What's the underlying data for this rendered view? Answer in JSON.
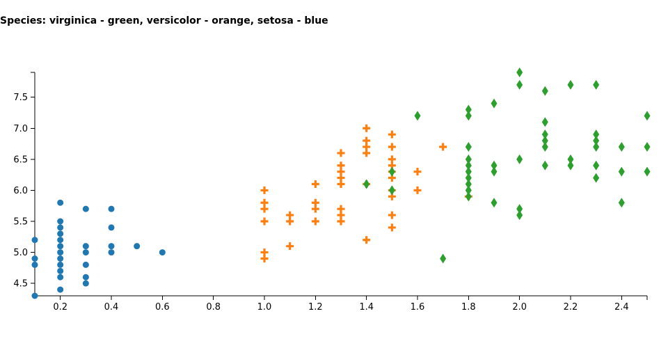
{
  "chart_data": {
    "type": "scatter",
    "title": "Species: virginica - green, versicolor - orange, setosa - blue",
    "xlabel": "",
    "ylabel": "",
    "xlim": [
      0.1,
      2.5
    ],
    "ylim": [
      4.3,
      7.9
    ],
    "x_ticks": [
      0.2,
      0.4,
      0.6,
      0.8,
      1.0,
      1.2,
      1.4,
      1.6,
      1.8,
      2.0,
      2.2,
      2.4
    ],
    "x_tick_labels": [
      "0.2",
      "0.4",
      "0.6",
      "0.8",
      "1.0",
      "1.2",
      "1.4",
      "1.6",
      "1.8",
      "2.0",
      "2.2",
      "2.4"
    ],
    "y_ticks": [
      4.5,
      5.0,
      5.5,
      6.0,
      6.5,
      7.0,
      7.5
    ],
    "y_tick_labels": [
      "4.5",
      "5.0",
      "5.5",
      "6.0",
      "6.5",
      "7.0",
      "7.5"
    ],
    "grid": false,
    "legend": "none",
    "series": [
      {
        "species": "setosa",
        "color": "#1f77b4",
        "marker": "circle",
        "points": [
          [
            0.1,
            4.3
          ],
          [
            0.1,
            4.8
          ],
          [
            0.1,
            4.9
          ],
          [
            0.1,
            5.2
          ],
          [
            0.2,
            4.4
          ],
          [
            0.2,
            4.6
          ],
          [
            0.2,
            4.7
          ],
          [
            0.2,
            4.8
          ],
          [
            0.2,
            4.9
          ],
          [
            0.2,
            5.0
          ],
          [
            0.2,
            5.1
          ],
          [
            0.2,
            5.2
          ],
          [
            0.2,
            5.3
          ],
          [
            0.2,
            5.4
          ],
          [
            0.2,
            5.5
          ],
          [
            0.2,
            5.8
          ],
          [
            0.3,
            4.5
          ],
          [
            0.3,
            4.6
          ],
          [
            0.3,
            4.8
          ],
          [
            0.3,
            5.0
          ],
          [
            0.3,
            5.1
          ],
          [
            0.3,
            5.7
          ],
          [
            0.4,
            5.0
          ],
          [
            0.4,
            5.1
          ],
          [
            0.4,
            5.4
          ],
          [
            0.4,
            5.7
          ],
          [
            0.5,
            5.1
          ],
          [
            0.6,
            5.0
          ]
        ]
      },
      {
        "species": "versicolor",
        "color": "#ff7f0e",
        "marker": "cross",
        "points": [
          [
            1.0,
            4.9
          ],
          [
            1.0,
            5.0
          ],
          [
            1.0,
            5.5
          ],
          [
            1.0,
            5.7
          ],
          [
            1.0,
            5.8
          ],
          [
            1.0,
            6.0
          ],
          [
            1.1,
            5.1
          ],
          [
            1.1,
            5.5
          ],
          [
            1.1,
            5.6
          ],
          [
            1.2,
            5.5
          ],
          [
            1.2,
            5.7
          ],
          [
            1.2,
            5.8
          ],
          [
            1.2,
            6.1
          ],
          [
            1.3,
            5.5
          ],
          [
            1.3,
            5.6
          ],
          [
            1.3,
            5.7
          ],
          [
            1.3,
            6.1
          ],
          [
            1.3,
            6.2
          ],
          [
            1.3,
            6.3
          ],
          [
            1.3,
            6.4
          ],
          [
            1.3,
            6.6
          ],
          [
            1.4,
            5.2
          ],
          [
            1.4,
            6.1
          ],
          [
            1.4,
            6.6
          ],
          [
            1.4,
            6.7
          ],
          [
            1.4,
            6.8
          ],
          [
            1.4,
            7.0
          ],
          [
            1.5,
            5.4
          ],
          [
            1.5,
            5.6
          ],
          [
            1.5,
            5.9
          ],
          [
            1.5,
            6.0
          ],
          [
            1.5,
            6.2
          ],
          [
            1.5,
            6.3
          ],
          [
            1.5,
            6.4
          ],
          [
            1.5,
            6.5
          ],
          [
            1.5,
            6.7
          ],
          [
            1.5,
            6.9
          ],
          [
            1.6,
            6.0
          ],
          [
            1.6,
            6.3
          ],
          [
            1.7,
            6.7
          ],
          [
            1.8,
            5.9
          ]
        ]
      },
      {
        "species": "virginica",
        "color": "#2ca02c",
        "marker": "diamond",
        "points": [
          [
            1.4,
            6.1
          ],
          [
            1.5,
            6.0
          ],
          [
            1.5,
            6.3
          ],
          [
            1.6,
            7.2
          ],
          [
            1.7,
            4.9
          ],
          [
            1.8,
            5.9
          ],
          [
            1.8,
            6.0
          ],
          [
            1.8,
            6.1
          ],
          [
            1.8,
            6.2
          ],
          [
            1.8,
            6.3
          ],
          [
            1.8,
            6.4
          ],
          [
            1.8,
            6.5
          ],
          [
            1.8,
            6.7
          ],
          [
            1.8,
            7.2
          ],
          [
            1.8,
            7.3
          ],
          [
            1.9,
            5.8
          ],
          [
            1.9,
            6.3
          ],
          [
            1.9,
            6.4
          ],
          [
            1.9,
            7.4
          ],
          [
            2.0,
            5.6
          ],
          [
            2.0,
            5.7
          ],
          [
            2.0,
            6.5
          ],
          [
            2.0,
            7.7
          ],
          [
            2.0,
            7.9
          ],
          [
            2.1,
            6.4
          ],
          [
            2.1,
            6.7
          ],
          [
            2.1,
            6.8
          ],
          [
            2.1,
            6.9
          ],
          [
            2.1,
            7.1
          ],
          [
            2.1,
            7.6
          ],
          [
            2.2,
            6.4
          ],
          [
            2.2,
            6.5
          ],
          [
            2.2,
            7.7
          ],
          [
            2.3,
            6.2
          ],
          [
            2.3,
            6.4
          ],
          [
            2.3,
            6.7
          ],
          [
            2.3,
            6.8
          ],
          [
            2.3,
            6.9
          ],
          [
            2.3,
            7.7
          ],
          [
            2.4,
            5.8
          ],
          [
            2.4,
            6.3
          ],
          [
            2.4,
            6.7
          ],
          [
            2.5,
            6.3
          ],
          [
            2.5,
            6.7
          ],
          [
            2.5,
            7.2
          ]
        ]
      }
    ]
  }
}
